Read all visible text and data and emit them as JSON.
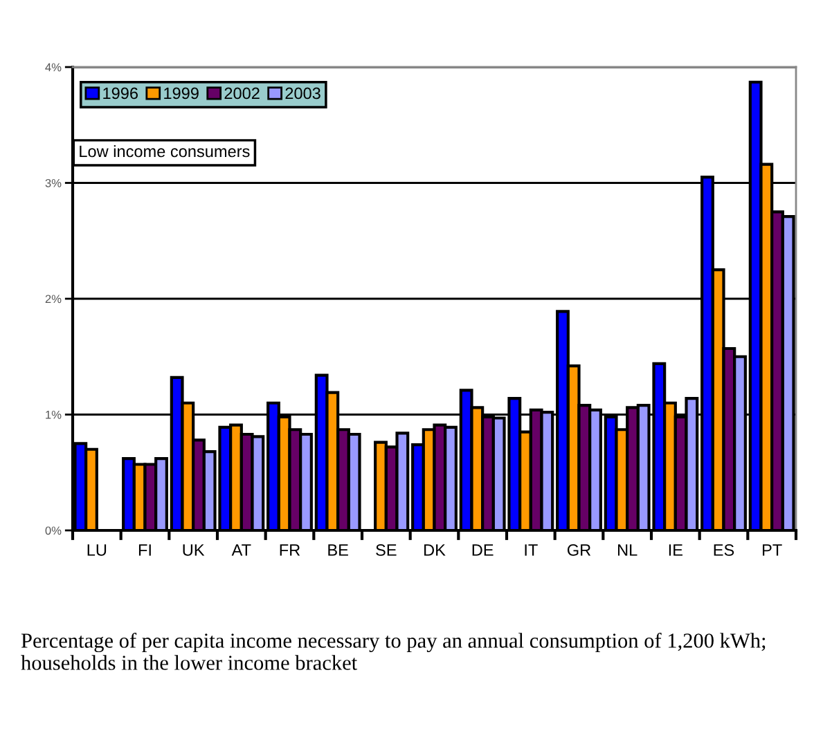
{
  "chart_data": {
    "type": "bar",
    "categories": [
      "LU",
      "FI",
      "UK",
      "AT",
      "FR",
      "BE",
      "SE",
      "DK",
      "DE",
      "IT",
      "GR",
      "NL",
      "IE",
      "ES",
      "PT"
    ],
    "series": [
      {
        "name": "1996",
        "color": "#0000ff",
        "values": [
          0.75,
          0.62,
          1.32,
          0.89,
          1.1,
          1.34,
          null,
          0.74,
          1.21,
          1.14,
          1.89,
          0.98,
          1.44,
          3.05,
          3.87
        ]
      },
      {
        "name": "1999",
        "color": "#ff9900",
        "values": [
          0.7,
          0.57,
          1.1,
          0.91,
          0.98,
          1.19,
          0.76,
          0.87,
          1.06,
          0.85,
          1.42,
          0.87,
          1.1,
          2.25,
          3.16
        ]
      },
      {
        "name": "2002",
        "color": "#660066",
        "values": [
          null,
          0.57,
          0.78,
          0.83,
          0.87,
          0.87,
          0.72,
          0.91,
          0.98,
          1.04,
          1.08,
          1.06,
          0.98,
          1.57,
          2.75
        ]
      },
      {
        "name": "2003",
        "color": "#9999ff",
        "values": [
          null,
          0.62,
          0.68,
          0.81,
          0.83,
          0.83,
          0.84,
          0.89,
          0.97,
          1.02,
          1.04,
          1.08,
          1.14,
          1.5,
          2.71
        ]
      }
    ],
    "ylim": [
      0,
      4
    ],
    "yticks": [
      {
        "value": 0,
        "label": "0%"
      },
      {
        "value": 1,
        "label": "1%"
      },
      {
        "value": 2,
        "label": "2%"
      },
      {
        "value": 3,
        "label": "3%"
      },
      {
        "value": 4,
        "label": "4%"
      }
    ],
    "grid": "y",
    "legend": "top left",
    "annotations": [
      "Low income consumers",
      "Percentage of per capita income necessary to pay an annual consumption of 1,200 kWh; households in the lower income bracket"
    ]
  }
}
